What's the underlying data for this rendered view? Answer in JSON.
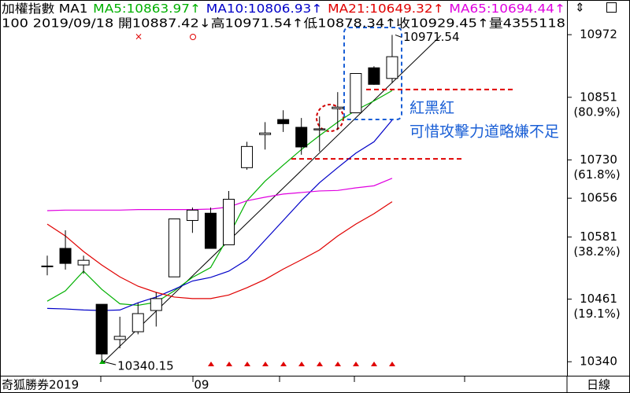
{
  "chart_data": {
    "type": "candlestick",
    "title": "加權指數 MA1",
    "info": "100 2019/09/18 開10887.42↓高10971.54↑低10878.34↑收10929.45↑量4355118",
    "categories": [
      null,
      null,
      null,
      null,
      null,
      null,
      null,
      null,
      "09",
      null,
      null,
      null,
      null,
      null,
      null,
      null,
      null,
      null,
      null,
      null
    ],
    "open": [
      10525,
      10559,
      10527,
      10451,
      10383,
      10398,
      10439,
      10504,
      10613,
      10627,
      10566,
      10715,
      10779,
      10808,
      10793,
      10788,
      10829,
      10821,
      10908,
      10887.42
    ],
    "high": [
      10545,
      10594,
      10545,
      10451,
      10427,
      10454,
      10474,
      10616,
      10638,
      10638,
      10670,
      10765,
      10803,
      10826,
      10811,
      10814,
      10861,
      10897,
      10911,
      10971.54
    ],
    "low": [
      10507,
      10518,
      10510,
      10340.15,
      10366,
      10393,
      10408,
      10504,
      10589,
      10559,
      10566,
      10711,
      10750,
      10784,
      10740,
      10746,
      10788,
      10821,
      10875,
      10878.34
    ],
    "close": [
      10525,
      10530,
      10536,
      10355,
      10389,
      10433,
      10462,
      10616,
      10633,
      10559,
      10654,
      10756,
      10782,
      10800,
      10755,
      10790,
      10832,
      10897,
      10876,
      10929.45
    ],
    "up_color": "#ffffff",
    "down_color": "#000000",
    "series": [
      {
        "name": "MA5:10863.97↑",
        "color": "#00b000",
        "values": [
          10457,
          10477,
          10515,
          10480,
          10452,
          10449,
          10455,
          10477,
          10503,
          10522,
          10583,
          10651,
          10689,
          10720,
          10750,
          10777,
          10803,
          10826,
          10844,
          10863.97
        ]
      },
      {
        "name": "MA10:10806.93↑",
        "color": "#0000c8",
        "values": [
          10443,
          10442,
          10440,
          10439,
          10440,
          10454,
          10465,
          10480,
          10496,
          10503,
          10515,
          10537,
          10575,
          10613,
          10651,
          10686,
          10715,
          10743,
          10765,
          10806.93
        ]
      },
      {
        "name": "MA21:10649.32↑",
        "color": "#e00000",
        "values": [
          10606,
          10583,
          10553,
          10527,
          10504,
          10486,
          10474,
          10465,
          10462,
          10462,
          10469,
          10483,
          10499,
          10519,
          10537,
          10556,
          10583,
          10606,
          10626,
          10649.32
        ]
      },
      {
        "name": "MA65:10694.44↑",
        "color": "#e000e0",
        "values": [
          10632,
          10633,
          10633,
          10633,
          10633,
          10634,
          10634,
          10634,
          10634,
          10635,
          10639,
          10651,
          10658,
          10664,
          10667,
          10670,
          10671,
          10676,
          10680,
          10694.44
        ]
      }
    ],
    "ylim": [
      10313,
      11039
    ],
    "yticks": [
      10340,
      10461,
      10581,
      10656,
      10730,
      10851,
      10972
    ],
    "fib_labels": [
      {
        "value": 10461,
        "label": "(19.1%)"
      },
      {
        "value": 10581,
        "label": "(38.2%)"
      },
      {
        "value": 10730,
        "label": "(61.8%)"
      },
      {
        "value": 10851,
        "label": "(80.9%)"
      }
    ],
    "levels": [
      10866,
      10732
    ],
    "level_color": "#e00000",
    "notes": [
      "紅黑紅",
      "可惜攻擊力道略嫌不足"
    ],
    "note_color": "#1a5fd6",
    "footer_left": "奇狐勝券2019",
    "footer_right": "日線"
  }
}
